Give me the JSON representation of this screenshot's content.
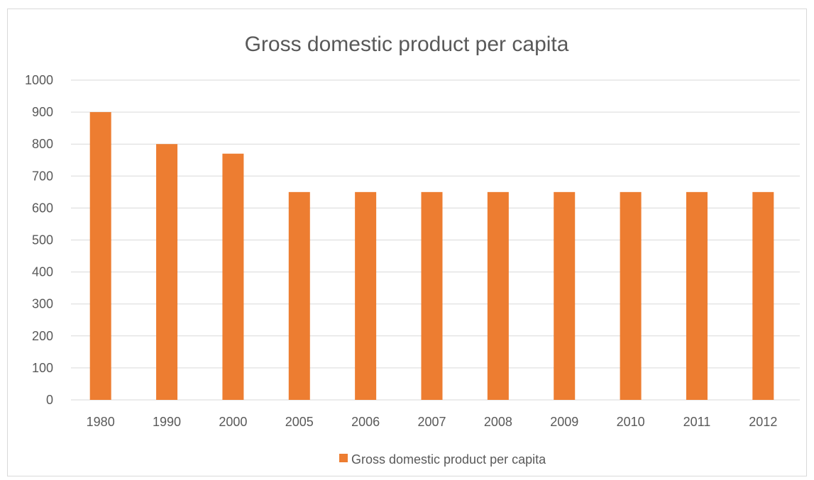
{
  "chart_data": {
    "type": "bar",
    "title": "Gross domestic product per capita",
    "xlabel": "",
    "ylabel": "",
    "categories": [
      "1980",
      "1990",
      "2000",
      "2005",
      "2006",
      "2007",
      "2008",
      "2009",
      "2010",
      "2011",
      "2012"
    ],
    "series": [
      {
        "name": "Gross domestic product per capita",
        "values": [
          900,
          800,
          770,
          650,
          650,
          650,
          650,
          650,
          650,
          650,
          650
        ],
        "color": "#ed7d31"
      }
    ],
    "ylim": [
      0,
      1000
    ],
    "yticks": [
      0,
      100,
      200,
      300,
      400,
      500,
      600,
      700,
      800,
      900,
      1000
    ],
    "grid": true,
    "legend": "bottom",
    "gridColor": "#d9d9d9",
    "textColor": "#595959"
  }
}
